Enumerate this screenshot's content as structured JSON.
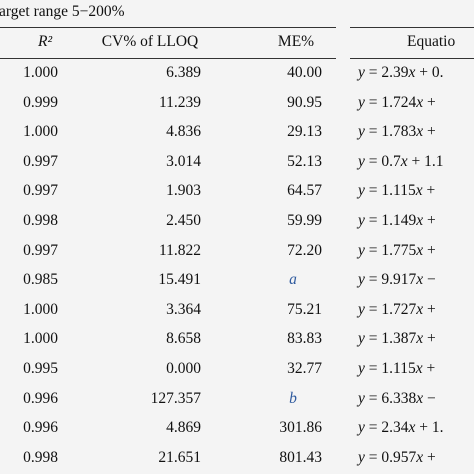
{
  "caption": "arget range 5−200%",
  "table": {
    "header": [
      "R²",
      "CV% of LLOQ",
      "ME%",
      "Equatio"
    ],
    "rows": [
      [
        "1.000",
        "6.389",
        "40.00",
        "y = 2.39x + 0."
      ],
      [
        "0.999",
        "11.239",
        "90.95",
        "y = 1.724x +"
      ],
      [
        "1.000",
        "4.836",
        "29.13",
        "y = 1.783x +"
      ],
      [
        "0.997",
        "3.014",
        "52.13",
        "y = 0.7x + 1.1"
      ],
      [
        "0.997",
        "1.903",
        "64.57",
        "y = 1.115x +"
      ],
      [
        "0.998",
        "2.450",
        "59.99",
        "y = 1.149x +"
      ],
      [
        "0.997",
        "11.822",
        "72.20",
        "y = 1.775x +"
      ],
      [
        "0.985",
        "15.491",
        "a",
        "y = 9.917x −"
      ],
      [
        "1.000",
        "3.364",
        "75.21",
        "y = 1.727x +"
      ],
      [
        "1.000",
        "8.658",
        "83.83",
        "y = 1.387x +"
      ],
      [
        "0.995",
        "0.000",
        "32.77",
        "y = 1.115x +"
      ],
      [
        "0.996",
        "127.357",
        "b",
        "y = 6.338x −"
      ],
      [
        "0.996",
        "4.869",
        "301.86",
        "y = 2.34x + 1."
      ],
      [
        "0.998",
        "21.651",
        "801.43",
        "y = 0.957x +"
      ]
    ]
  }
}
